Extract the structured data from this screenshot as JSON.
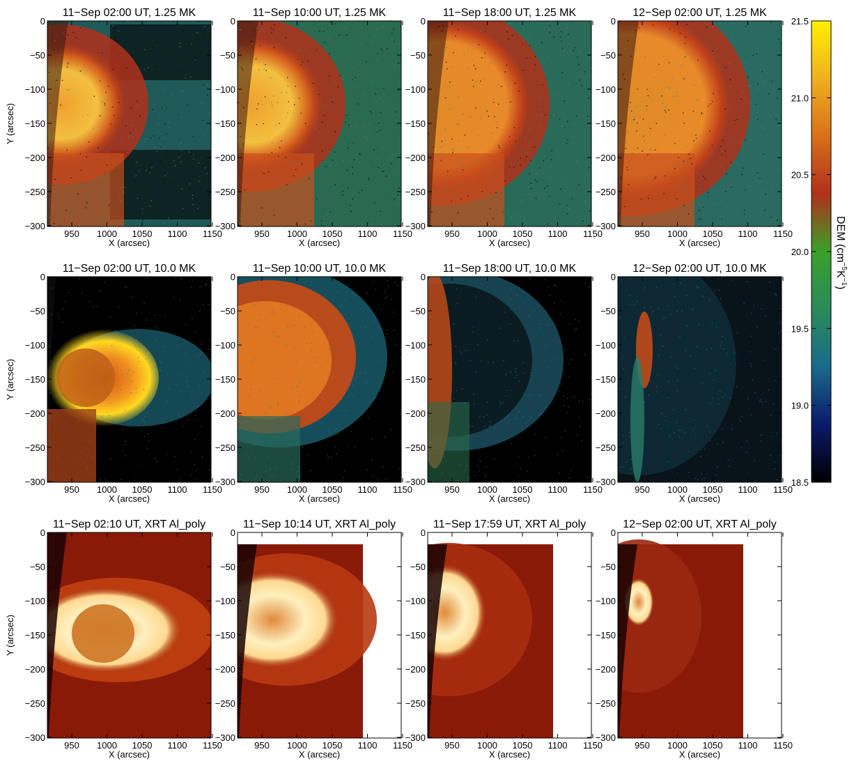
{
  "figure": {
    "rows": [
      {
        "kind": "dem",
        "panels": [
          {
            "title": "11−Sep 02:00 UT, 1.25 MK"
          },
          {
            "title": "11−Sep 10:00 UT, 1.25 MK"
          },
          {
            "title": "11−Sep 18:00 UT, 1.25 MK"
          },
          {
            "title": "12−Sep 02:00 UT, 1.25 MK"
          }
        ]
      },
      {
        "kind": "dem",
        "panels": [
          {
            "title": "11−Sep 02:00 UT, 10.0 MK"
          },
          {
            "title": "11−Sep 10:00 UT, 10.0 MK"
          },
          {
            "title": "11−Sep 18:00 UT, 10.0 MK"
          },
          {
            "title": "12−Sep 02:00 UT, 10.0 MK"
          }
        ]
      },
      {
        "kind": "xrt",
        "panels": [
          {
            "title": "11−Sep 02:10 UT, XRT Al_poly"
          },
          {
            "title": "11−Sep 10:14 UT, XRT Al_poly"
          },
          {
            "title": "11−Sep 17:59 UT, XRT Al_poly"
          },
          {
            "title": "12−Sep 02:00 UT, XRT Al_poly"
          }
        ]
      }
    ],
    "x_label": "X (arcsec)",
    "y_label": "Y (arcsec)",
    "x_ticks": [
      "950",
      "1000",
      "1050",
      "1100",
      "1150"
    ],
    "y_ticks": [
      "0",
      "−50",
      "−100",
      "−150",
      "−200",
      "−250",
      "−300"
    ],
    "colorbar": {
      "label_main": "DEM (cm",
      "label_exp1": "−5",
      "label_mid": "K",
      "label_exp2": "−1",
      "label_close": ")",
      "ticks": [
        "21.5",
        "21.0",
        "20.5",
        "20.0",
        "19.5",
        "19.0",
        "18.5"
      ],
      "colors": [
        "#000000",
        "#0a1a6a",
        "#1a6a8a",
        "#2a8a5a",
        "#3aa02a",
        "#b0301a",
        "#d8701a",
        "#f0b020",
        "#fff000"
      ]
    }
  }
}
